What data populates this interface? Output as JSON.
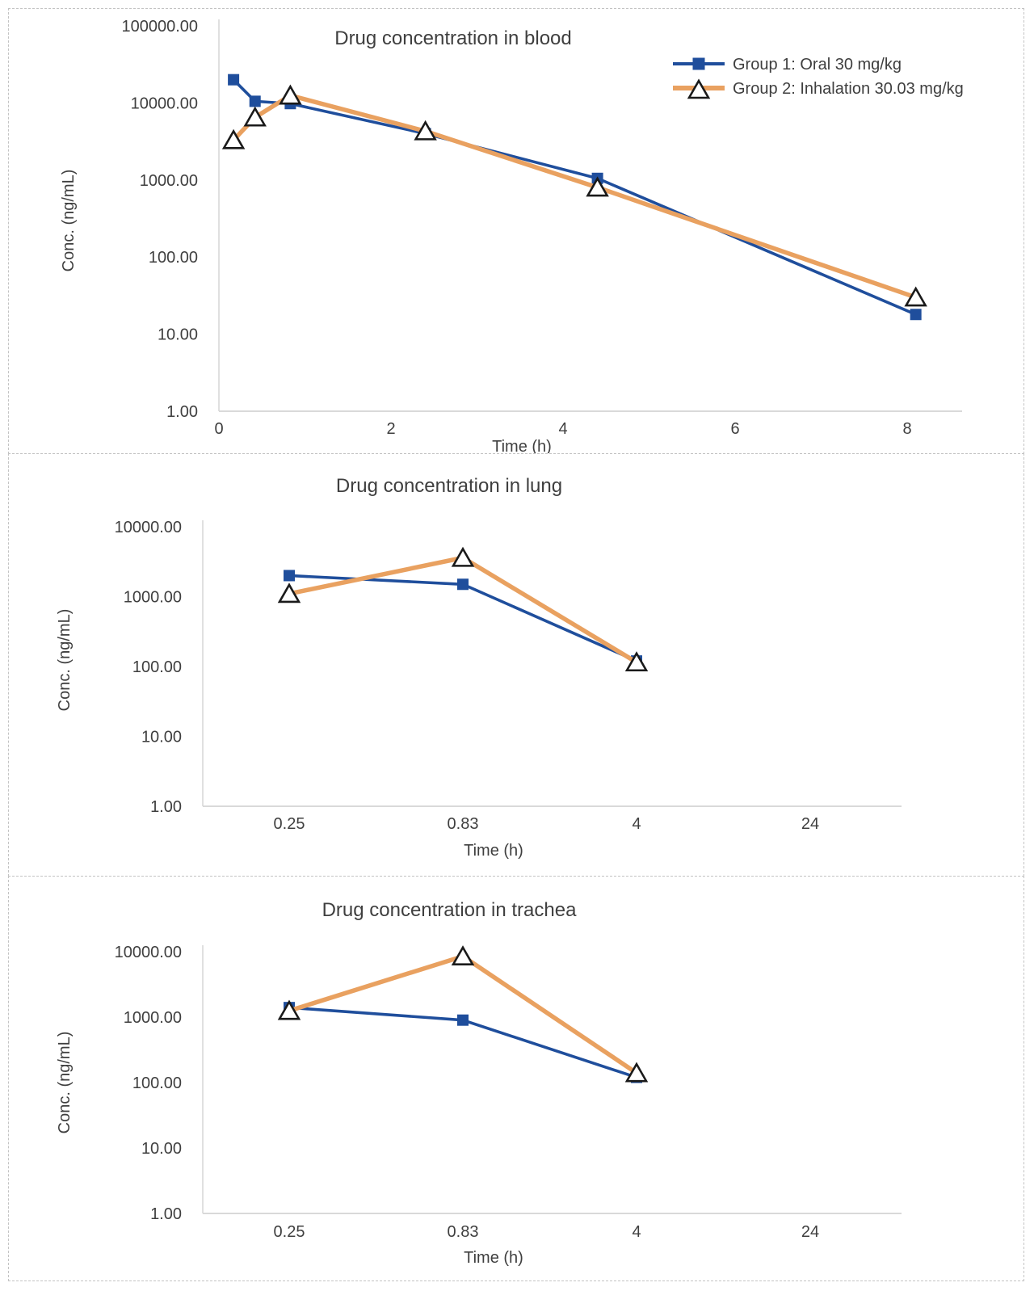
{
  "figure_name": "drug-concentration-figure",
  "colors": {
    "oral_blue": "#1F4E9C",
    "inhalation_orange": "#E9A160",
    "axis_gray": "#D9D9D9",
    "text_dark": "#3F3F3F",
    "triangle_stroke": "#1A1A1A",
    "triangle_fill": "#FFFFFF",
    "panel_border": "#C3C3C3"
  },
  "legend": {
    "items": [
      {
        "label": "Group 1: Oral 30 mg/kg",
        "marker": "square",
        "color": "#1F4E9C"
      },
      {
        "label": "Group 2: Inhalation 30.03 mg/kg",
        "marker": "triangle",
        "color": "#E9A160"
      }
    ]
  },
  "chart_data": [
    {
      "type": "line",
      "title": "Drug concentration in blood",
      "xlabel": "Time (h)",
      "ylabel": "Conc. (ng/mL)",
      "y_scale": "log",
      "ylim": [
        1,
        100000
      ],
      "y_tick_labels": [
        "100000.00",
        "10000.00",
        "1000.00",
        "100.00",
        "10.00",
        "1.00"
      ],
      "x_axis_type": "linear",
      "x_ticks": [
        0,
        2,
        4,
        6,
        8
      ],
      "x_tick_labels": [
        "0",
        "2",
        "4",
        "6",
        "8"
      ],
      "x": [
        0.17,
        0.42,
        0.83,
        2.4,
        4.4,
        8.1
      ],
      "series": [
        {
          "name": "Group 1: Oral 30 mg/kg",
          "marker": "square",
          "color": "#1F4E9C",
          "values": [
            20000,
            10500,
            9800,
            4000,
            1050,
            18
          ]
        },
        {
          "name": "Group 2: Inhalation 30.03 mg/kg",
          "marker": "triangle",
          "color": "#E9A160",
          "values": [
            3300,
            6500,
            12500,
            4300,
            800,
            30
          ]
        }
      ],
      "legend_position": "top-right",
      "grid": false
    },
    {
      "type": "line",
      "title": "Drug concentration in lung",
      "xlabel": "Time (h)",
      "ylabel": "Conc. (ng/mL)",
      "y_scale": "log",
      "ylim": [
        1,
        10000
      ],
      "y_tick_labels": [
        "10000.00",
        "1000.00",
        "100.00",
        "10.00",
        "1.00"
      ],
      "x_axis_type": "categorical",
      "categories": [
        "0.25",
        "0.83",
        "4",
        "24"
      ],
      "series": [
        {
          "name": "Group 1: Oral 30 mg/kg",
          "marker": "square",
          "color": "#1F4E9C",
          "values": [
            2000,
            1500,
            120,
            null
          ]
        },
        {
          "name": "Group 2: Inhalation 30.03 mg/kg",
          "marker": "triangle",
          "color": "#E9A160",
          "values": [
            1100,
            3600,
            115,
            null
          ]
        }
      ],
      "legend_position": "none",
      "grid": false
    },
    {
      "type": "line",
      "title": "Drug concentration in trachea",
      "xlabel": "Time (h)",
      "ylabel": "Conc. (ng/mL)",
      "y_scale": "log",
      "ylim": [
        1,
        10000
      ],
      "y_tick_labels": [
        "10000.00",
        "1000.00",
        "100.00",
        "10.00",
        "1.00"
      ],
      "x_axis_type": "categorical",
      "categories": [
        "0.25",
        "0.83",
        "4",
        "24"
      ],
      "series": [
        {
          "name": "Group 1: Oral 30 mg/kg",
          "marker": "square",
          "color": "#1F4E9C",
          "values": [
            1400,
            900,
            120,
            null
          ]
        },
        {
          "name": "Group 2: Inhalation 30.03 mg/kg",
          "marker": "triangle",
          "color": "#E9A160",
          "values": [
            1250,
            8500,
            140,
            null
          ]
        }
      ],
      "legend_position": "none",
      "grid": false
    }
  ]
}
